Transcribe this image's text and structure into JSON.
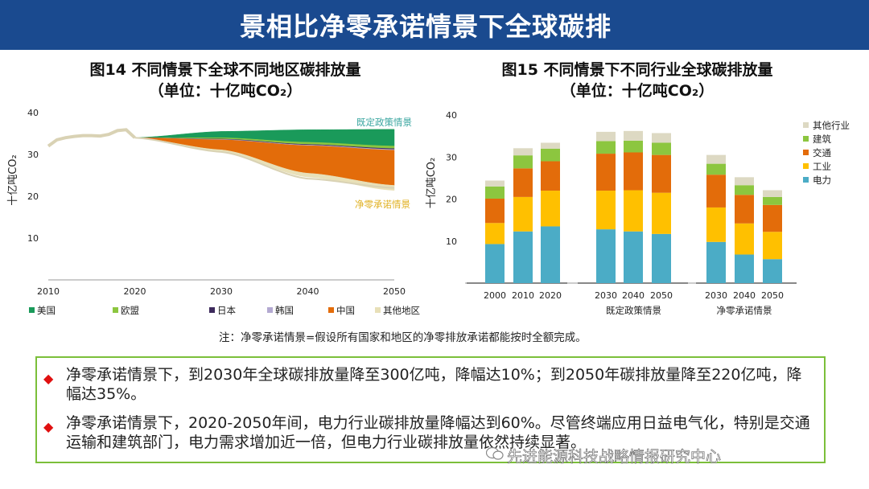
{
  "banner": {
    "title": "景相比净零承诺情景下全球碳排"
  },
  "figure14": {
    "title": "图14 不同情景下全球不同地区碳排放量",
    "subtitle": "（单位：十亿吨CO₂）",
    "ylabel": "十亿吨CO₂",
    "annotations": {
      "stated": "既定政策情景",
      "netzero": "净零承诺情景"
    }
  },
  "figure15": {
    "title": "图15 不同情景下不同行业全球碳排放量",
    "subtitle": "（单位：十亿吨CO₂）",
    "ylabel": "十亿吨CO₂",
    "groups": [
      "既定政策情景",
      "净零承诺情景"
    ]
  },
  "chart_data": [
    {
      "type": "area",
      "title": "图14 不同情景下全球不同地区碳排放量",
      "ylabel": "十亿吨CO₂",
      "x": [
        2010,
        2020,
        2030,
        2040,
        2050
      ],
      "xticks": [
        "2010",
        "2020",
        "2030",
        "2040",
        "2050"
      ],
      "yticks": [
        "10",
        "20",
        "30",
        "40"
      ],
      "ylim": [
        0,
        40
      ],
      "xlim": [
        2010,
        2050
      ],
      "history": {
        "years": [
          2010,
          2011,
          2012,
          2013,
          2014,
          2015,
          2016,
          2017,
          2018,
          2019,
          2020
        ],
        "values": [
          32.0,
          33.5,
          34.0,
          34.3,
          34.5,
          34.5,
          34.4,
          34.8,
          35.7,
          35.9,
          34.0
        ]
      },
      "stated_policies_total": {
        "years": [
          2020,
          2030,
          2040,
          2050
        ],
        "values": [
          34.0,
          35.5,
          35.9,
          36.0
        ]
      },
      "series": [
        {
          "name": "美国",
          "color": "#1a9a5a",
          "reduction": [
            0,
            1.5,
            3.0,
            4.0
          ]
        },
        {
          "name": "欧盟",
          "color": "#8cc63f",
          "reduction": [
            0,
            0.3,
            0.5,
            0.6
          ]
        },
        {
          "name": "日本",
          "color": "#3d2a5c",
          "reduction": [
            0,
            0.1,
            0.15,
            0.2
          ]
        },
        {
          "name": "韩国",
          "color": "#b3a9d1",
          "reduction": [
            0,
            0.1,
            0.15,
            0.2
          ]
        },
        {
          "name": "中国",
          "color": "#e36c0a",
          "reduction": [
            0,
            2.4,
            6.6,
            8.4
          ]
        },
        {
          "name": "其他地区",
          "color": "#e8e0b8",
          "reduction": [
            0,
            0.5,
            0.9,
            1.2
          ]
        }
      ],
      "net_zero_total": {
        "years": [
          2020,
          2030,
          2040,
          2050
        ],
        "values": [
          34.0,
          30.6,
          24.2,
          22.0
        ]
      },
      "annotations": [
        "既定政策情景",
        "净零承诺情景"
      ],
      "legend": "bottom"
    },
    {
      "type": "bar",
      "title": "图15 不同情景下不同行业全球碳排放量",
      "ylabel": "十亿吨CO₂",
      "categories": [
        "2000",
        "2010",
        "2020",
        "2030",
        "2040",
        "2050",
        "2030",
        "2040",
        "2050"
      ],
      "groups": [
        {
          "name": "",
          "span": [
            0,
            2
          ]
        },
        {
          "name": "既定政策情景",
          "span": [
            3,
            5
          ]
        },
        {
          "name": "净零承诺情景",
          "span": [
            6,
            8
          ]
        }
      ],
      "yticks": [
        "10",
        "20",
        "30",
        "40"
      ],
      "ylim": [
        0,
        40
      ],
      "series": [
        {
          "name": "电力",
          "color": "#4bacc6",
          "values": [
            9.3,
            12.3,
            13.5,
            12.8,
            12.3,
            11.7,
            9.8,
            6.8,
            5.7
          ]
        },
        {
          "name": "工业",
          "color": "#ffc000",
          "values": [
            5.0,
            8.2,
            8.5,
            9.2,
            9.8,
            9.8,
            8.2,
            7.4,
            6.5
          ]
        },
        {
          "name": "交通",
          "color": "#e36c0a",
          "values": [
            5.8,
            6.8,
            7.0,
            8.8,
            9.0,
            9.0,
            7.8,
            6.8,
            6.4
          ]
        },
        {
          "name": "建筑",
          "color": "#8cc63f",
          "values": [
            2.9,
            3.1,
            3.0,
            3.0,
            2.8,
            2.9,
            2.6,
            2.3,
            1.9
          ]
        },
        {
          "name": "其他行业",
          "color": "#ddd9c3",
          "values": [
            1.4,
            1.7,
            1.4,
            2.2,
            2.3,
            2.3,
            2.1,
            1.9,
            1.6
          ]
        }
      ],
      "legend": "right"
    }
  ],
  "note": "注：净零承诺情景=假设所有国家和地区的净零排放承诺都能按时全额完成。",
  "bullets": [
    "净零承诺情景下，到2030年全球碳排放量降至300亿吨，降幅达10%；到2050年碳排放量降至220亿吨，降幅达35%。",
    "净零承诺情景下，2020-2050年间，电力行业碳排放量降幅达到60%。尽管终端应用日益电气化，特别是交通运输和建筑部门，电力需求增加近一倍，但电力行业碳排放量依然持续显著。"
  ],
  "watermark": "先进能源科技战略情报研究中心"
}
